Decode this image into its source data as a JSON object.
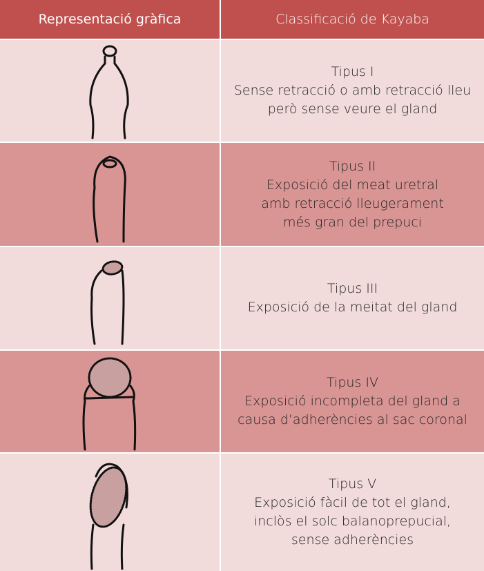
{
  "table": {
    "header": [
      "Representació gràfica",
      "Classificació de Kayaba"
    ],
    "rows": [
      {
        "title": "Tipus I",
        "lines": [
          "Sense retracció o amb retracció lleu",
          "però sense veure el gland"
        ]
      },
      {
        "title": "Tipus II",
        "lines": [
          "Exposició del meat uretral",
          "amb retracció lleugerament",
          "més gran del prepuci"
        ]
      },
      {
        "title": "Tipus III",
        "lines": [
          "Exposició de la meitat del gland"
        ]
      },
      {
        "title": "Tipus IV",
        "lines": [
          "Exposició incompleta del gland a",
          "causa d’adherències al sac coronal"
        ]
      },
      {
        "title": "Tipus V",
        "lines": [
          "Exposició fàcil de tot el gland,",
          "inclòs el solc balanoprepucial,",
          "sense adherències"
        ]
      }
    ]
  }
}
